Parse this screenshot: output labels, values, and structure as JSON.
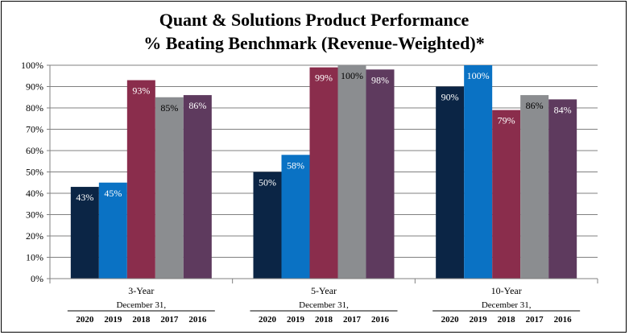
{
  "chart_data": {
    "type": "bar",
    "title": "Quant & Solutions Product Performance",
    "subtitle": "% Beating Benchmark (Revenue-Weighted)*",
    "categories": [
      "3-Year",
      "5-Year",
      "10-Year"
    ],
    "group_sublabel": "December 31,",
    "ylim": [
      0,
      100
    ],
    "yticks": [
      "0%",
      "10%",
      "20%",
      "30%",
      "40%",
      "50%",
      "60%",
      "70%",
      "80%",
      "90%",
      "100%"
    ],
    "grid": true,
    "series": [
      {
        "name": "2020",
        "color": "#0b2545",
        "label_color": "#ffffff",
        "values": [
          43,
          50,
          90
        ],
        "labels": [
          "43%",
          "50%",
          "90%"
        ]
      },
      {
        "name": "2019",
        "color": "#0a72c4",
        "label_color": "#ffffff",
        "values": [
          45,
          58,
          100
        ],
        "labels": [
          "45%",
          "58%",
          "100%"
        ]
      },
      {
        "name": "2018",
        "color": "#8a2d4c",
        "label_color": "#ffffff",
        "values": [
          93,
          99,
          79
        ],
        "labels": [
          "93%",
          "99%",
          "79%"
        ]
      },
      {
        "name": "2017",
        "color": "#8b8d90",
        "label_color": "#000000",
        "values": [
          85,
          100,
          86
        ],
        "labels": [
          "85%",
          "100%",
          "86%"
        ]
      },
      {
        "name": "2016",
        "color": "#5e3a5e",
        "label_color": "#ffffff",
        "values": [
          86,
          98,
          84
        ],
        "labels": [
          "86%",
          "98%",
          "84%"
        ]
      }
    ]
  }
}
